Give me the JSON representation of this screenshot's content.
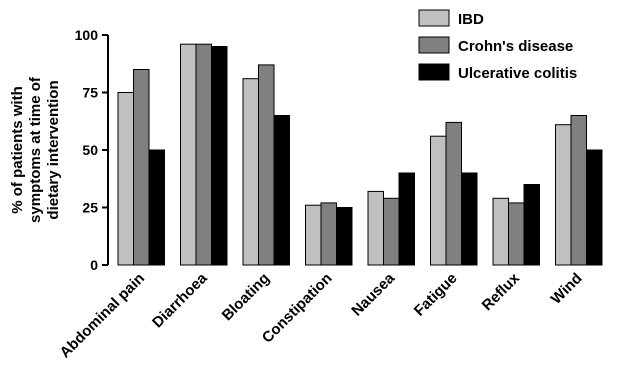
{
  "chart_data": {
    "type": "bar",
    "categories": [
      "Abdominal pain",
      "Diarrhoea",
      "Bloating",
      "Constipation",
      "Nausea",
      "Fatigue",
      "Reflux",
      "Wind"
    ],
    "series": [
      {
        "name": "IBD",
        "color": "#c0c0c0",
        "values": [
          75,
          96,
          81,
          26,
          32,
          56,
          29,
          61
        ]
      },
      {
        "name": "Crohn's disease",
        "color": "#808080",
        "values": [
          85,
          96,
          87,
          27,
          29,
          62,
          27,
          65
        ]
      },
      {
        "name": "Ulcerative colitis",
        "color": "#000000",
        "values": [
          50,
          95,
          65,
          25,
          40,
          40,
          35,
          50
        ]
      }
    ],
    "ylabel_lines": [
      "% of patients with",
      "symptoms at time of",
      "dietary intervention"
    ],
    "ylim": [
      0,
      100
    ],
    "yticks": [
      0,
      25,
      50,
      75,
      100
    ],
    "grid": false,
    "legend_position": "top-right"
  }
}
